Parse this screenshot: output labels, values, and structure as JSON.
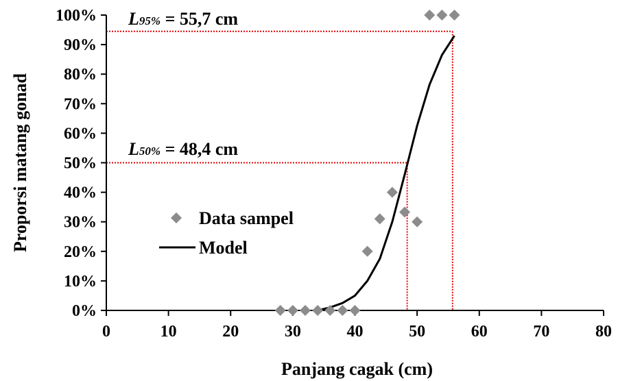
{
  "chart_data": {
    "type": "scatter",
    "xlabel": "Panjang cagak (cm)",
    "ylabel": "Proporsi matang gonad",
    "xlim": [
      0,
      80
    ],
    "ylim": [
      0,
      1
    ],
    "xticks": [
      "0",
      "10",
      "20",
      "30",
      "40",
      "50",
      "60",
      "70",
      "80"
    ],
    "yticks": [
      "0%",
      "10%",
      "20%",
      "30%",
      "40%",
      "50%",
      "60%",
      "70%",
      "80%",
      "90%",
      "100%"
    ],
    "grid": false,
    "legend_position": "center-left",
    "series": [
      {
        "name": "Data sampel",
        "kind": "scatter",
        "marker": "diamond",
        "color": "#8c8c8c",
        "points": [
          [
            28,
            0
          ],
          [
            30,
            0
          ],
          [
            32,
            0
          ],
          [
            34,
            0
          ],
          [
            36,
            0
          ],
          [
            38,
            0
          ],
          [
            40,
            0
          ],
          [
            42,
            0.2
          ],
          [
            44,
            0.31
          ],
          [
            46,
            0.4
          ],
          [
            48,
            0.333
          ],
          [
            50,
            0.3
          ],
          [
            52,
            1.0
          ],
          [
            54,
            1.0
          ],
          [
            56,
            1.0
          ]
        ]
      },
      {
        "name": "Model",
        "kind": "line",
        "color": "#000000",
        "points": [
          [
            34,
            0.0
          ],
          [
            36,
            0.01
          ],
          [
            38,
            0.025
          ],
          [
            40,
            0.05
          ],
          [
            42,
            0.1
          ],
          [
            44,
            0.175
          ],
          [
            46,
            0.3
          ],
          [
            48,
            0.46
          ],
          [
            50,
            0.625
          ],
          [
            52,
            0.765
          ],
          [
            54,
            0.865
          ],
          [
            56,
            0.93
          ]
        ]
      }
    ],
    "annotations": [
      {
        "label_main": "L",
        "label_sub": "50%",
        "label_value": " = 48,4 cm",
        "x": 48.4,
        "y": 0.5,
        "color": "#e00000"
      },
      {
        "label_main": "L",
        "label_sub": "95%",
        "label_value": " = 55,7 cm",
        "x": 55.7,
        "y": 0.945,
        "color": "#e00000"
      }
    ]
  }
}
